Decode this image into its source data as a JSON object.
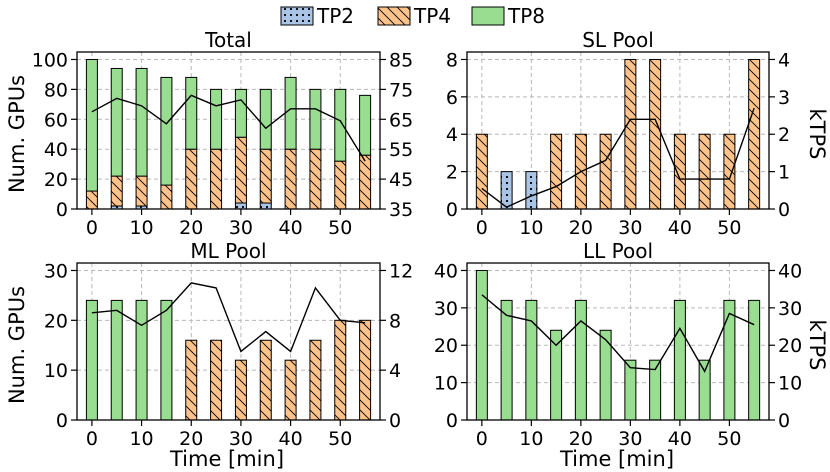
{
  "chart_data": {
    "type": "bar",
    "legend": [
      {
        "name": "TP2",
        "color": "#aac4e6",
        "hatch": "dots"
      },
      {
        "name": "TP4",
        "color": "#fdc38a",
        "hatch": "diagonal"
      },
      {
        "name": "TP8",
        "color": "#99dd90",
        "hatch": "none"
      }
    ],
    "shared_x": [
      0,
      5,
      10,
      15,
      20,
      25,
      30,
      35,
      40,
      45,
      50,
      55
    ],
    "xlabel": "Time [min]",
    "x_ticks": [
      "0",
      "10",
      "20",
      "30",
      "40",
      "50"
    ],
    "panels": [
      {
        "title": "Total",
        "ylabel": "Num. GPUs",
        "ylim": [
          0,
          105
        ],
        "y_ticks": [
          "0",
          "20",
          "40",
          "60",
          "80",
          "100"
        ],
        "y2label": "",
        "y2lim": [
          35,
          87.5
        ],
        "y2_ticks": [
          "35",
          "45",
          "55",
          "65",
          "75",
          "85"
        ],
        "series": [
          {
            "name": "TP2",
            "values": [
              0,
              2,
              2,
              0,
              0,
              0,
              4,
              4,
              0,
              0,
              0,
              0
            ]
          },
          {
            "name": "TP4",
            "values": [
              12,
              20,
              20,
              16,
              40,
              40,
              44,
              36,
              40,
              40,
              32,
              36
            ]
          },
          {
            "name": "TP8",
            "values": [
              88,
              72,
              72,
              72,
              48,
              40,
              32,
              40,
              48,
              40,
              48,
              40
            ]
          }
        ],
        "ktps": [
          67.5,
          72,
          69.5,
          63.5,
          73,
          69.5,
          71.5,
          62,
          68.5,
          68.5,
          64.5,
          51
        ]
      },
      {
        "title": "SL Pool",
        "ylabel": "",
        "ylim": [
          0,
          8.4
        ],
        "y_ticks": [
          "0",
          "2",
          "4",
          "6",
          "8"
        ],
        "y2label": "kTPS",
        "y2lim": [
          0,
          4.2
        ],
        "y2_ticks": [
          "0",
          "1",
          "2",
          "3",
          "4"
        ],
        "series": [
          {
            "name": "TP2",
            "values": [
              0,
              2,
              2,
              0,
              0,
              0,
              0,
              0,
              0,
              0,
              0,
              0
            ]
          },
          {
            "name": "TP4",
            "values": [
              4,
              0,
              0,
              4,
              4,
              4,
              8,
              8,
              4,
              4,
              4,
              8
            ]
          },
          {
            "name": "TP8",
            "values": [
              0,
              0,
              0,
              0,
              0,
              0,
              0,
              0,
              0,
              0,
              0,
              0
            ]
          }
        ],
        "ktps": [
          0.55,
          0.05,
          0.35,
          0.6,
          1.0,
          1.3,
          2.4,
          2.4,
          0.8,
          0.8,
          0.8,
          2.7
        ]
      },
      {
        "title": "ML Pool",
        "ylabel": "Num. GPUs",
        "ylim": [
          0,
          31.5
        ],
        "y_ticks": [
          "0",
          "10",
          "20",
          "30"
        ],
        "y2label": "",
        "y2lim": [
          0,
          12.6
        ],
        "y2_ticks": [
          "0",
          "4",
          "8",
          "12"
        ],
        "series": [
          {
            "name": "TP2",
            "values": [
              0,
              0,
              0,
              0,
              0,
              0,
              0,
              0,
              0,
              0,
              0,
              0
            ]
          },
          {
            "name": "TP4",
            "values": [
              0,
              0,
              0,
              0,
              16,
              16,
              12,
              16,
              12,
              16,
              20,
              20
            ]
          },
          {
            "name": "TP8",
            "values": [
              24,
              24,
              24,
              24,
              0,
              0,
              0,
              0,
              0,
              0,
              0,
              0
            ]
          }
        ],
        "ktps": [
          8.6,
          8.8,
          7.6,
          8.8,
          11.0,
          10.6,
          5.5,
          7.1,
          5.5,
          10.6,
          8.0,
          7.8
        ]
      },
      {
        "title": "LL Pool",
        "ylabel": "",
        "ylim": [
          0,
          42
        ],
        "y_ticks": [
          "0",
          "10",
          "20",
          "30",
          "40"
        ],
        "y2label": "kTPS",
        "y2lim": [
          0,
          42
        ],
        "y2_ticks": [
          "0",
          "10",
          "20",
          "30",
          "40"
        ],
        "series": [
          {
            "name": "TP2",
            "values": [
              0,
              0,
              0,
              0,
              0,
              0,
              0,
              0,
              0,
              0,
              0,
              0
            ]
          },
          {
            "name": "TP4",
            "values": [
              0,
              0,
              0,
              0,
              0,
              0,
              0,
              0,
              0,
              0,
              0,
              0
            ]
          },
          {
            "name": "TP8",
            "values": [
              40,
              32,
              32,
              24,
              32,
              24,
              16,
              16,
              32,
              16,
              32,
              32
            ]
          }
        ],
        "ktps": [
          33.5,
          28,
          26.5,
          20,
          26.5,
          21.5,
          14,
          13.5,
          24.5,
          13,
          28.5,
          25.5
        ]
      }
    ]
  }
}
